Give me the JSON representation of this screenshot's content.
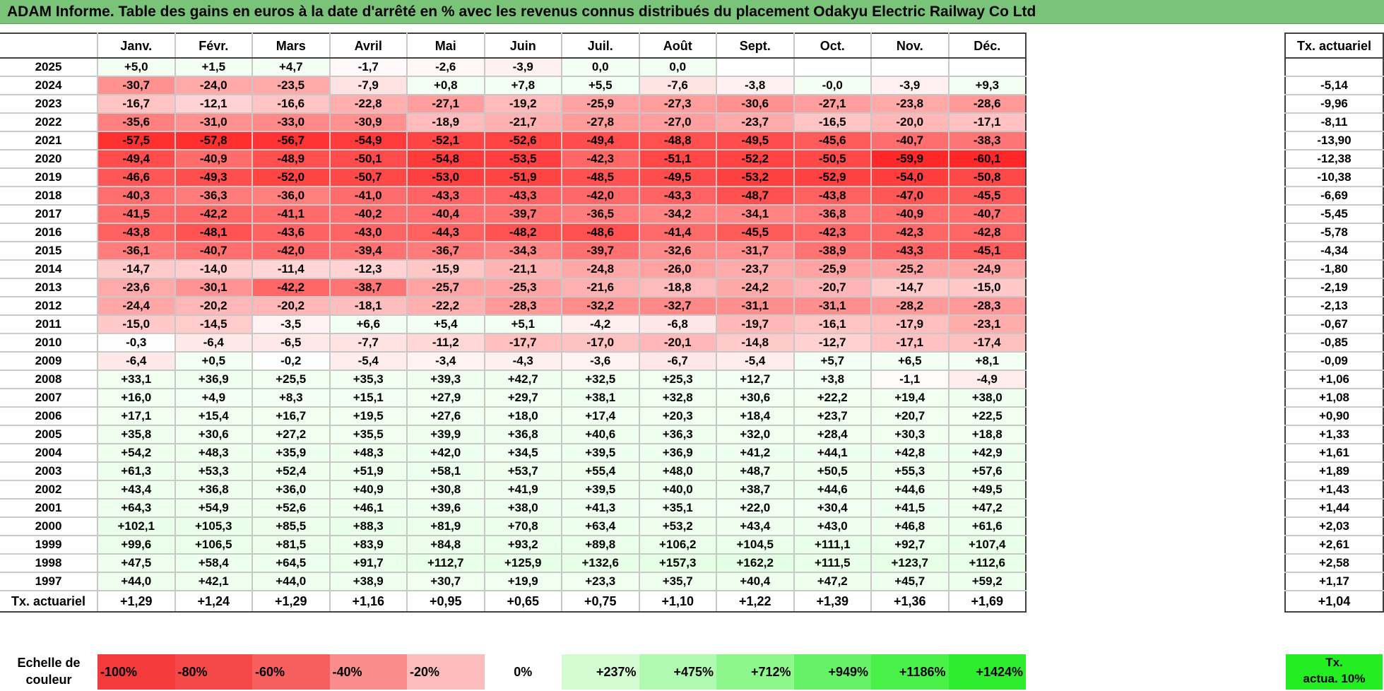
{
  "title": "ADAM Informe. Table des gains en euros à la date d'arrêté en % avec les revenus connus distribués du placement Odakyu Electric Railway Co Ltd",
  "months": [
    "Janv.",
    "Févr.",
    "Mars",
    "Avril",
    "Mai",
    "Juin",
    "Juil.",
    "Août",
    "Sept.",
    "Oct.",
    "Nov.",
    "Déc."
  ],
  "side_header": "Tx. actuariel",
  "rows": [
    {
      "year": "2025",
      "values": [
        "+5,0",
        "+1,5",
        "+4,7",
        "-1,7",
        "-2,6",
        "-3,9",
        "0,0",
        "0,0",
        "",
        "",
        "",
        ""
      ],
      "rate": ""
    },
    {
      "year": "2024",
      "values": [
        "-30,7",
        "-24,0",
        "-23,5",
        "-7,9",
        "+0,8",
        "+7,8",
        "+5,5",
        "-7,6",
        "-3,8",
        "-0,0",
        "-3,9",
        "+9,3"
      ],
      "rate": "-5,14"
    },
    {
      "year": "2023",
      "values": [
        "-16,7",
        "-12,1",
        "-16,6",
        "-22,8",
        "-27,1",
        "-19,2",
        "-25,9",
        "-27,3",
        "-30,6",
        "-27,1",
        "-23,8",
        "-28,6"
      ],
      "rate": "-9,96"
    },
    {
      "year": "2022",
      "values": [
        "-35,6",
        "-31,0",
        "-33,0",
        "-30,9",
        "-18,9",
        "-21,7",
        "-27,8",
        "-27,0",
        "-23,7",
        "-16,5",
        "-20,0",
        "-17,1"
      ],
      "rate": "-8,11"
    },
    {
      "year": "2021",
      "values": [
        "-57,5",
        "-57,8",
        "-56,7",
        "-54,9",
        "-52,1",
        "-52,6",
        "-49,4",
        "-48,8",
        "-49,5",
        "-45,6",
        "-40,7",
        "-38,3"
      ],
      "rate": "-13,90"
    },
    {
      "year": "2020",
      "values": [
        "-49,4",
        "-40,9",
        "-48,9",
        "-50,1",
        "-54,8",
        "-53,5",
        "-42,3",
        "-51,1",
        "-52,2",
        "-50,5",
        "-59,9",
        "-60,1"
      ],
      "rate": "-12,38"
    },
    {
      "year": "2019",
      "values": [
        "-46,6",
        "-49,3",
        "-52,0",
        "-50,7",
        "-53,0",
        "-51,9",
        "-48,5",
        "-49,5",
        "-53,2",
        "-52,9",
        "-54,0",
        "-50,8"
      ],
      "rate": "-10,38"
    },
    {
      "year": "2018",
      "values": [
        "-40,3",
        "-36,3",
        "-36,0",
        "-41,0",
        "-43,3",
        "-43,3",
        "-42,0",
        "-43,3",
        "-48,7",
        "-43,8",
        "-47,0",
        "-45,5"
      ],
      "rate": "-6,69"
    },
    {
      "year": "2017",
      "values": [
        "-41,5",
        "-42,2",
        "-41,1",
        "-40,2",
        "-40,4",
        "-39,7",
        "-36,5",
        "-34,2",
        "-34,1",
        "-36,8",
        "-40,9",
        "-40,7"
      ],
      "rate": "-5,45"
    },
    {
      "year": "2016",
      "values": [
        "-43,8",
        "-48,1",
        "-43,6",
        "-43,0",
        "-44,3",
        "-48,2",
        "-48,6",
        "-41,4",
        "-45,5",
        "-42,3",
        "-42,3",
        "-42,8"
      ],
      "rate": "-5,78"
    },
    {
      "year": "2015",
      "values": [
        "-36,1",
        "-40,7",
        "-42,0",
        "-39,4",
        "-36,7",
        "-34,3",
        "-39,7",
        "-32,6",
        "-31,7",
        "-38,9",
        "-43,3",
        "-45,1"
      ],
      "rate": "-4,34"
    },
    {
      "year": "2014",
      "values": [
        "-14,7",
        "-14,0",
        "-11,4",
        "-12,3",
        "-15,9",
        "-21,1",
        "-24,8",
        "-26,0",
        "-23,7",
        "-25,9",
        "-25,2",
        "-24,9"
      ],
      "rate": "-1,80"
    },
    {
      "year": "2013",
      "values": [
        "-23,6",
        "-30,1",
        "-42,2",
        "-38,7",
        "-25,7",
        "-25,3",
        "-21,6",
        "-18,8",
        "-24,2",
        "-20,7",
        "-14,7",
        "-15,0"
      ],
      "rate": "-2,19"
    },
    {
      "year": "2012",
      "values": [
        "-24,4",
        "-20,2",
        "-20,2",
        "-18,1",
        "-22,2",
        "-28,3",
        "-32,2",
        "-32,7",
        "-31,1",
        "-31,1",
        "-28,2",
        "-28,3"
      ],
      "rate": "-2,13"
    },
    {
      "year": "2011",
      "values": [
        "-15,0",
        "-14,5",
        "-3,5",
        "+6,6",
        "+5,4",
        "+5,1",
        "-4,2",
        "-6,8",
        "-19,7",
        "-16,1",
        "-17,9",
        "-23,1"
      ],
      "rate": "-0,67"
    },
    {
      "year": "2010",
      "values": [
        "-0,3",
        "-6,4",
        "-6,5",
        "-7,7",
        "-11,2",
        "-17,7",
        "-17,0",
        "-20,1",
        "-14,8",
        "-12,7",
        "-17,1",
        "-17,4"
      ],
      "rate": "-0,85"
    },
    {
      "year": "2009",
      "values": [
        "-6,4",
        "+0,5",
        "-0,2",
        "-5,4",
        "-3,4",
        "-4,3",
        "-3,6",
        "-6,7",
        "-5,4",
        "+5,7",
        "+6,5",
        "+8,1"
      ],
      "rate": "-0,09"
    },
    {
      "year": "2008",
      "values": [
        "+33,1",
        "+36,9",
        "+25,5",
        "+35,3",
        "+39,3",
        "+42,7",
        "+32,5",
        "+25,3",
        "+12,7",
        "+3,8",
        "-1,1",
        "-4,9"
      ],
      "rate": "+1,06"
    },
    {
      "year": "2007",
      "values": [
        "+16,0",
        "+4,9",
        "+8,3",
        "+15,1",
        "+27,9",
        "+29,7",
        "+38,1",
        "+32,8",
        "+30,6",
        "+22,2",
        "+19,4",
        "+38,0"
      ],
      "rate": "+1,08"
    },
    {
      "year": "2006",
      "values": [
        "+17,1",
        "+15,4",
        "+16,7",
        "+19,5",
        "+27,6",
        "+18,0",
        "+17,4",
        "+20,3",
        "+18,4",
        "+23,7",
        "+20,7",
        "+22,5"
      ],
      "rate": "+0,90"
    },
    {
      "year": "2005",
      "values": [
        "+35,8",
        "+30,6",
        "+27,2",
        "+35,5",
        "+39,9",
        "+36,8",
        "+40,6",
        "+36,3",
        "+32,0",
        "+28,4",
        "+30,3",
        "+18,8"
      ],
      "rate": "+1,33"
    },
    {
      "year": "2004",
      "values": [
        "+54,2",
        "+48,3",
        "+35,9",
        "+48,3",
        "+42,0",
        "+34,5",
        "+39,5",
        "+36,9",
        "+41,2",
        "+44,1",
        "+42,8",
        "+42,9"
      ],
      "rate": "+1,61"
    },
    {
      "year": "2003",
      "values": [
        "+61,3",
        "+53,3",
        "+52,4",
        "+51,9",
        "+58,1",
        "+53,7",
        "+55,4",
        "+48,0",
        "+48,7",
        "+50,5",
        "+55,3",
        "+57,6"
      ],
      "rate": "+1,89"
    },
    {
      "year": "2002",
      "values": [
        "+43,4",
        "+36,8",
        "+36,0",
        "+40,9",
        "+30,8",
        "+41,9",
        "+39,5",
        "+40,0",
        "+38,7",
        "+44,6",
        "+44,6",
        "+49,5"
      ],
      "rate": "+1,43"
    },
    {
      "year": "2001",
      "values": [
        "+64,3",
        "+54,9",
        "+52,6",
        "+46,1",
        "+39,6",
        "+38,0",
        "+41,3",
        "+35,1",
        "+22,0",
        "+30,4",
        "+41,5",
        "+47,2"
      ],
      "rate": "+1,44"
    },
    {
      "year": "2000",
      "values": [
        "+102,1",
        "+105,3",
        "+85,5",
        "+88,3",
        "+81,9",
        "+70,8",
        "+63,4",
        "+53,2",
        "+43,4",
        "+43,0",
        "+46,8",
        "+61,6"
      ],
      "rate": "+2,03"
    },
    {
      "year": "1999",
      "values": [
        "+99,6",
        "+106,5",
        "+81,5",
        "+83,9",
        "+84,8",
        "+93,2",
        "+89,8",
        "+106,2",
        "+104,5",
        "+111,1",
        "+92,7",
        "+107,4"
      ],
      "rate": "+2,61"
    },
    {
      "year": "1998",
      "values": [
        "+47,5",
        "+58,4",
        "+64,5",
        "+91,7",
        "+112,7",
        "+125,9",
        "+132,6",
        "+157,3",
        "+162,2",
        "+111,5",
        "+123,7",
        "+112,6"
      ],
      "rate": "+2,58"
    },
    {
      "year": "1997",
      "values": [
        "+44,0",
        "+42,1",
        "+44,0",
        "+38,9",
        "+30,7",
        "+19,9",
        "+23,3",
        "+35,7",
        "+40,4",
        "+47,2",
        "+45,7",
        "+59,2"
      ],
      "rate": "+1,17"
    }
  ],
  "footer": {
    "label": "Tx. actuariel",
    "values": [
      "+1,29",
      "+1,24",
      "+1,29",
      "+1,16",
      "+0,95",
      "+0,65",
      "+0,75",
      "+1,10",
      "+1,22",
      "+1,39",
      "+1,36",
      "+1,69"
    ],
    "rate": "+1,04"
  },
  "legend": {
    "label_line1": "Echelle de",
    "label_line2": "couleur",
    "steps": [
      {
        "text": "-100%",
        "color": "#f43a3a",
        "align": "left"
      },
      {
        "text": "-80%",
        "color": "#f54848",
        "align": "left"
      },
      {
        "text": "-60%",
        "color": "#f75e5e",
        "align": "left"
      },
      {
        "text": "-40%",
        "color": "#fa8c8c",
        "align": "left"
      },
      {
        "text": "-20%",
        "color": "#fcbcbc",
        "align": "left"
      },
      {
        "text": "0%",
        "color": "#ffffff",
        "align": "center"
      },
      {
        "text": "+237%",
        "color": "#d3fcd3",
        "align": "right"
      },
      {
        "text": "+475%",
        "color": "#b0f9b0",
        "align": "right"
      },
      {
        "text": "+712%",
        "color": "#8df68d",
        "align": "right"
      },
      {
        "text": "+949%",
        "color": "#66f266",
        "align": "right"
      },
      {
        "text": "+1186%",
        "color": "#48f048",
        "align": "right"
      },
      {
        "text": "+1424%",
        "color": "#2eec2e",
        "align": "right"
      }
    ],
    "side_line1": "Tx.",
    "side_line2": "actua. 10%"
  }
}
